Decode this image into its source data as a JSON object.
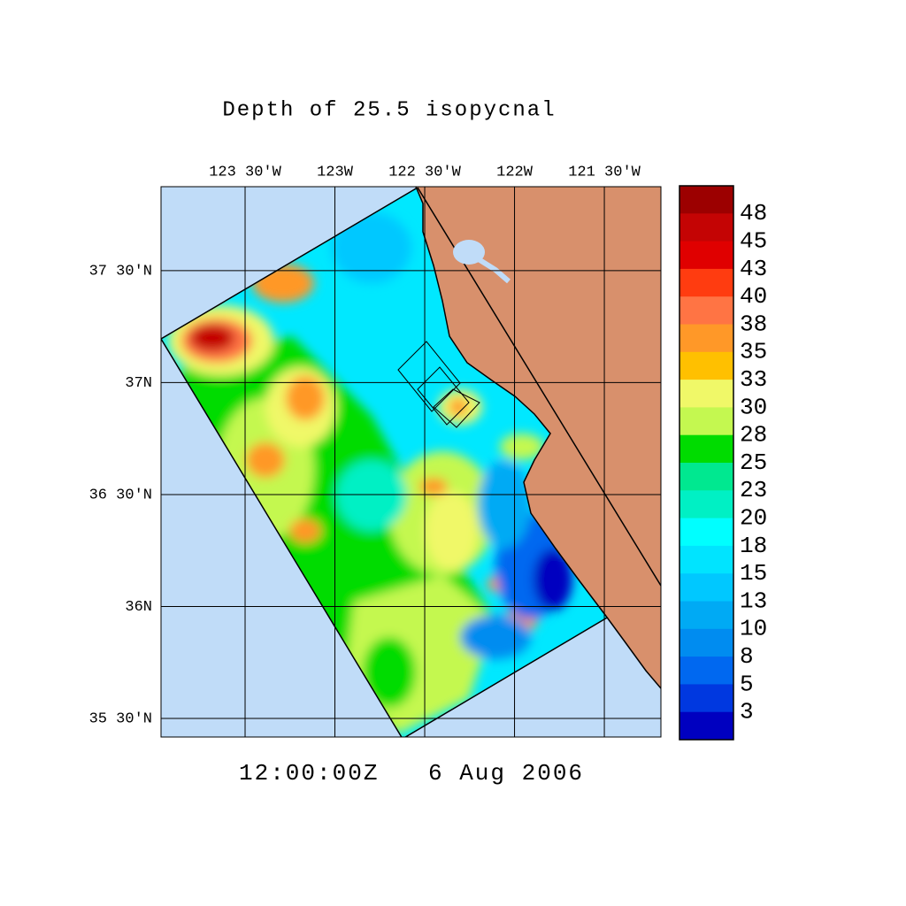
{
  "map": {
    "title": "Depth of 25.5 isopycnal",
    "xlim": [
      -123.968,
      -121.185
    ],
    "ylim": [
      35.417,
      37.875
    ],
    "lon_ticks": [
      {
        "value": -123.5,
        "label": "123 30'W"
      },
      {
        "value": -123,
        "label": "123W"
      },
      {
        "value": -122.5,
        "label": "122 30'W"
      },
      {
        "value": -122,
        "label": "122W"
      },
      {
        "value": -121.5,
        "label": "121 30'W"
      }
    ],
    "lat_ticks": [
      {
        "value": 37.5,
        "label": "37 30'N"
      },
      {
        "value": 37,
        "label": "37N"
      },
      {
        "value": 36.5,
        "label": "36 30'N"
      },
      {
        "value": 36,
        "label": "36N"
      },
      {
        "value": 35.5,
        "label": "35 30'N"
      }
    ],
    "time": "12:00:00Z",
    "date": "6 Aug 2006",
    "colorbar": {
      "levels": [
        48,
        45,
        43,
        40,
        38,
        35,
        33,
        30,
        28,
        25,
        23,
        20,
        18,
        15,
        13,
        10,
        8,
        5,
        3
      ],
      "colors": [
        "#9c0000",
        "#c40404",
        "#e00000",
        "#ff3c10",
        "#ff7444",
        "#ff9828",
        "#ffc000",
        "#f0f868",
        "#c4f850",
        "#00dc00",
        "#00e890",
        "#00f0c4",
        "#00ffff",
        "#00e4ff",
        "#00c8ff",
        "#00aaf4",
        "#008cf0",
        "#0068f0",
        "#0038e0",
        "#0000c0"
      ]
    }
  }
}
